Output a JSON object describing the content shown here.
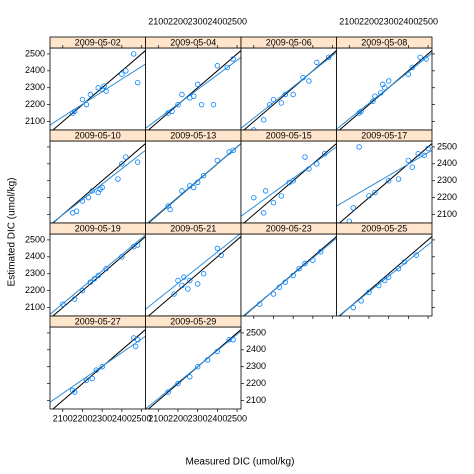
{
  "chart_data": {
    "type": "scatter",
    "xlabel": "Measured DIC (umol/kg)",
    "ylabel": "Estimated DIC (umol/kg)",
    "xlim": [
      2035,
      2520
    ],
    "ylim": [
      2050,
      2535
    ],
    "xticks": [
      2100,
      2200,
      2300,
      2400,
      2500
    ],
    "yticks": [
      2100,
      2200,
      2300,
      2400,
      2500
    ],
    "point_color": "#0080ff",
    "fit_color": "#2f8fd8",
    "strip_color": "#ffe5cc",
    "panels": [
      {
        "title": "2009-05-02",
        "x": [
          2150,
          2160,
          2200,
          2220,
          2240,
          2280,
          2300,
          2310,
          2320,
          2400,
          2420,
          2460,
          2480
        ],
        "y": [
          2150,
          2160,
          2230,
          2200,
          2260,
          2300,
          2290,
          2310,
          2280,
          2380,
          2400,
          2500,
          2330
        ],
        "fit_x": [
          2035,
          2520
        ],
        "fit_y": [
          2080,
          2440
        ]
      },
      {
        "title": "2009-05-04",
        "x": [
          2150,
          2170,
          2200,
          2220,
          2260,
          2280,
          2300,
          2320,
          2380,
          2400,
          2450,
          2480
        ],
        "y": [
          2150,
          2160,
          2200,
          2260,
          2240,
          2250,
          2320,
          2200,
          2200,
          2430,
          2420,
          2470
        ],
        "fit_x": [
          2035,
          2520
        ],
        "fit_y": [
          2060,
          2480
        ]
      },
      {
        "title": "2009-05-06",
        "x": [
          2100,
          2150,
          2180,
          2200,
          2240,
          2260,
          2300,
          2350,
          2380,
          2420,
          2480
        ],
        "y": [
          2050,
          2110,
          2200,
          2230,
          2210,
          2260,
          2260,
          2360,
          2340,
          2450,
          2480
        ],
        "fit_x": [
          2035,
          2520
        ],
        "fit_y": [
          2060,
          2510
        ]
      },
      {
        "title": "2009-05-08",
        "x": [
          2150,
          2160,
          2220,
          2230,
          2260,
          2270,
          2280,
          2300,
          2400,
          2420,
          2460,
          2490
        ],
        "y": [
          2150,
          2160,
          2220,
          2250,
          2270,
          2320,
          2300,
          2340,
          2380,
          2420,
          2480,
          2470
        ],
        "fit_x": [
          2035,
          2520
        ],
        "fit_y": [
          2055,
          2505
        ]
      },
      {
        "title": "2009-05-10",
        "x": [
          2150,
          2170,
          2200,
          2230,
          2250,
          2280,
          2290,
          2300,
          2380,
          2400,
          2420,
          2480
        ],
        "y": [
          2110,
          2120,
          2180,
          2200,
          2240,
          2230,
          2250,
          2260,
          2310,
          2400,
          2440,
          2410
        ],
        "fit_x": [
          2035,
          2520
        ],
        "fit_y": [
          2040,
          2480
        ]
      },
      {
        "title": "2009-05-13",
        "x": [
          2150,
          2160,
          2220,
          2260,
          2280,
          2300,
          2330,
          2400,
          2460,
          2480
        ],
        "y": [
          2150,
          2130,
          2240,
          2270,
          2260,
          2290,
          2330,
          2420,
          2470,
          2480
        ],
        "fit_x": [
          2035,
          2520
        ],
        "fit_y": [
          2040,
          2520
        ]
      },
      {
        "title": "2009-05-15",
        "x": [
          2100,
          2150,
          2160,
          2200,
          2240,
          2280,
          2300,
          2360,
          2380,
          2420,
          2460
        ],
        "y": [
          2200,
          2110,
          2240,
          2170,
          2210,
          2290,
          2300,
          2440,
          2370,
          2400,
          2460
        ],
        "fit_x": [
          2035,
          2520
        ],
        "fit_y": [
          2090,
          2500
        ]
      },
      {
        "title": "2009-05-17",
        "x": [
          2100,
          2120,
          2150,
          2200,
          2230,
          2300,
          2350,
          2400,
          2420,
          2450,
          2480,
          2500
        ],
        "y": [
          2060,
          2140,
          2500,
          2210,
          2230,
          2300,
          2310,
          2420,
          2380,
          2460,
          2450,
          2490
        ],
        "fit_x": [
          2035,
          2520
        ],
        "fit_y": [
          2150,
          2480
        ]
      },
      {
        "title": "2009-05-19",
        "x": [
          2100,
          2160,
          2200,
          2240,
          2260,
          2280,
          2320,
          2400,
          2460,
          2480
        ],
        "y": [
          2120,
          2150,
          2200,
          2250,
          2270,
          2290,
          2330,
          2400,
          2460,
          2470
        ],
        "fit_x": [
          2035,
          2520
        ],
        "fit_y": [
          2060,
          2530
        ]
      },
      {
        "title": "2009-05-21",
        "x": [
          2180,
          2200,
          2220,
          2230,
          2250,
          2260,
          2300,
          2330,
          2400,
          2420
        ],
        "y": [
          2180,
          2260,
          2230,
          2280,
          2210,
          2260,
          2240,
          2300,
          2450,
          2410
        ],
        "fit_x": [
          2035,
          2520
        ],
        "fit_y": [
          2090,
          2540
        ]
      },
      {
        "title": "2009-05-23",
        "x": [
          2130,
          2200,
          2230,
          2260,
          2300,
          2330,
          2360,
          2400,
          2440
        ],
        "y": [
          2120,
          2180,
          2220,
          2250,
          2290,
          2330,
          2360,
          2380,
          2430
        ],
        "fit_x": [
          2035,
          2520
        ],
        "fit_y": [
          2040,
          2510
        ]
      },
      {
        "title": "2009-05-25",
        "x": [
          2120,
          2160,
          2200,
          2250,
          2280,
          2300,
          2350,
          2380,
          2440
        ],
        "y": [
          2100,
          2140,
          2190,
          2230,
          2260,
          2280,
          2330,
          2370,
          2410
        ],
        "fit_x": [
          2035,
          2520
        ],
        "fit_y": [
          2040,
          2490
        ]
      },
      {
        "title": "2009-05-27",
        "x": [
          2150,
          2160,
          2220,
          2250,
          2270,
          2300,
          2460,
          2470,
          2480
        ],
        "y": [
          2160,
          2150,
          2220,
          2230,
          2280,
          2300,
          2470,
          2420,
          2460
        ],
        "fit_x": [
          2035,
          2520
        ],
        "fit_y": [
          2090,
          2480
        ]
      },
      {
        "title": "2009-05-29",
        "x": [
          2150,
          2200,
          2260,
          2300,
          2350,
          2400,
          2460,
          2480
        ],
        "y": [
          2150,
          2200,
          2240,
          2300,
          2340,
          2390,
          2460,
          2460
        ],
        "fit_x": [
          2035,
          2520
        ],
        "fit_y": [
          2050,
          2510
        ]
      }
    ]
  }
}
